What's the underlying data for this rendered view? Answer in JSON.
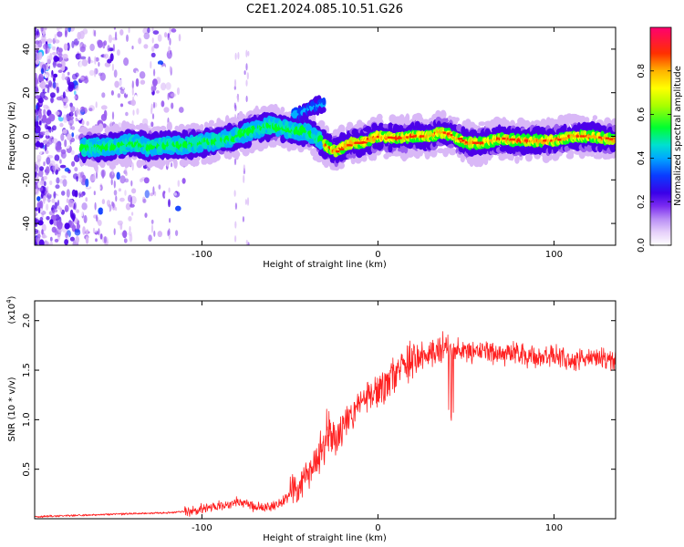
{
  "title": "C2E1.2024.085.10.51.G26",
  "chart_data": [
    {
      "type": "heatmap",
      "xlabel": "Height of straight line (km)",
      "ylabel": "Frequency (Hz)",
      "xlim": [
        -195,
        135
      ],
      "ylim": [
        -50,
        50
      ],
      "xticks": [
        -100,
        0,
        100
      ],
      "yticks": [
        -40,
        -20,
        0,
        20,
        40
      ],
      "colorbar": {
        "label": "Normalized spectral amplitude",
        "range": [
          0,
          1
        ],
        "ticks": [
          0.0,
          0.2,
          0.4,
          0.6,
          0.8
        ],
        "colors": [
          "#ffffff",
          "#d9b8f7",
          "#9a5df0",
          "#4b00e8",
          "#0b3cff",
          "#00b0ff",
          "#00e0c0",
          "#00ff20",
          "#b0ff00",
          "#ffff00",
          "#ffb000",
          "#ff3000",
          "#ff0070"
        ]
      },
      "ridge": {
        "x": [
          -165,
          -150,
          -140,
          -130,
          -120,
          -110,
          -100,
          -90,
          -80,
          -70,
          -60,
          -50,
          -40,
          -33,
          -28,
          -24,
          -20,
          -15,
          -10,
          0,
          10,
          20,
          30,
          35,
          40,
          50,
          60,
          70,
          80,
          90,
          100,
          110,
          120,
          130,
          135
        ],
        "freq": [
          -5,
          -5,
          -3,
          -5,
          -4,
          -4,
          -3,
          -2,
          0,
          3,
          5,
          3,
          2,
          -2,
          -5,
          -7,
          -5,
          -3,
          -3,
          0,
          -1,
          0,
          0,
          2,
          1,
          -3,
          -3,
          -1,
          -2,
          -2,
          -2,
          0,
          0,
          -1,
          -2
        ]
      },
      "branch": {
        "x": [
          -45,
          -40,
          -35,
          -30
        ],
        "freq": [
          10,
          12,
          14,
          15
        ]
      }
    },
    {
      "type": "line",
      "xlabel": "Height of straight line (km)",
      "ylabel": "SNR (10 * v/v)",
      "yscale_label": "(x10",
      "yscale_exp": "4",
      "yscale_close": ")",
      "xlim": [
        -195,
        135
      ],
      "ylim": [
        0,
        2.2
      ],
      "xticks": [
        -100,
        0,
        100
      ],
      "yticks": [
        0.5,
        1.0,
        1.5,
        2.0
      ],
      "ytick_labels": [
        "0.5",
        "1.0",
        "1.5",
        "2.0"
      ],
      "color": "#ff2020",
      "series": {
        "x": [
          -195,
          -180,
          -160,
          -140,
          -120,
          -105,
          -95,
          -85,
          -80,
          -75,
          -70,
          -65,
          -60,
          -55,
          -50,
          -45,
          -40,
          -35,
          -30,
          -27,
          -25,
          -22,
          -20,
          -15,
          -10,
          -5,
          0,
          5,
          10,
          15,
          20,
          25,
          30,
          35,
          40,
          42,
          45,
          50,
          60,
          70,
          80,
          90,
          100,
          110,
          120,
          130,
          135
        ],
        "y": [
          0.02,
          0.03,
          0.04,
          0.05,
          0.06,
          0.08,
          0.12,
          0.15,
          0.18,
          0.15,
          0.12,
          0.12,
          0.13,
          0.15,
          0.25,
          0.33,
          0.45,
          0.6,
          0.75,
          0.85,
          0.8,
          0.9,
          0.95,
          1.05,
          1.15,
          1.25,
          1.3,
          1.35,
          1.45,
          1.55,
          1.6,
          1.65,
          1.7,
          1.7,
          1.75,
          1.65,
          1.7,
          1.7,
          1.7,
          1.65,
          1.68,
          1.62,
          1.65,
          1.6,
          1.62,
          1.6,
          1.6
        ]
      }
    }
  ]
}
